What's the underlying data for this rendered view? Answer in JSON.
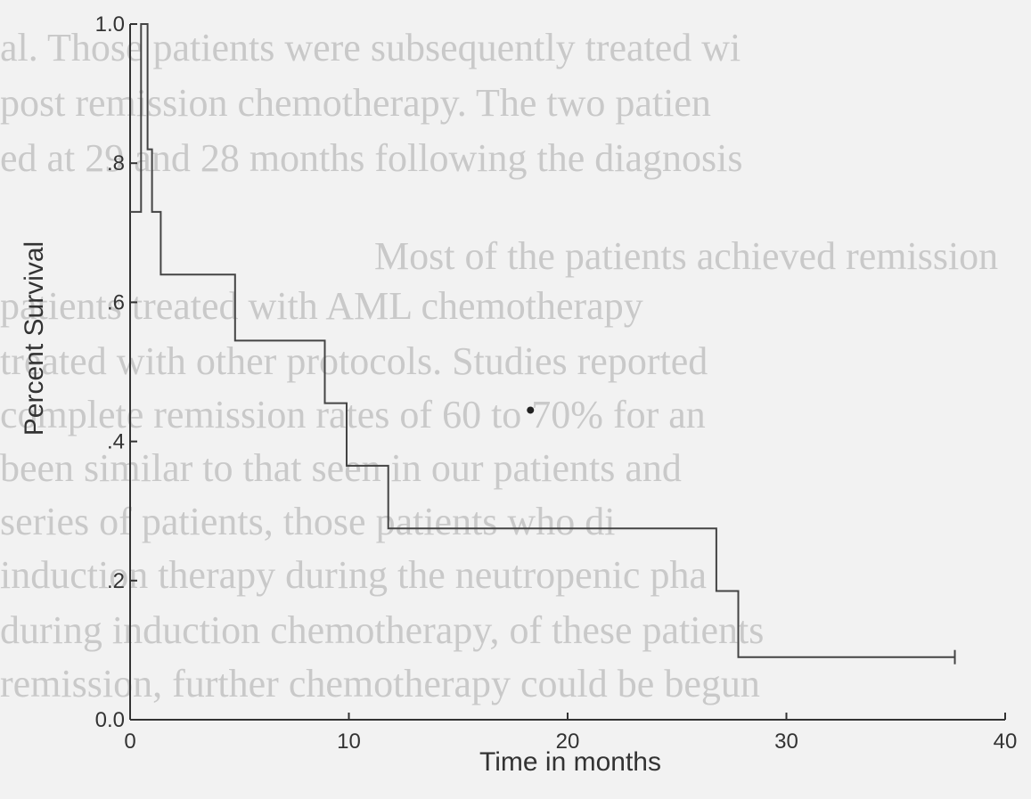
{
  "background_text": [
    "al. Those patients were subsequently treated wi",
    "post remission chemotherapy. The two patien",
    "ed at 29 and 28 months following the diagnosis",
    "Most of the patients achieved remission",
    "patients treated with AML chemotherapy",
    "treated with other protocols. Studies reported",
    "complete remission rates of 60 to 70% for an",
    "been similar to that seen in our patients and",
    "series of patients, those patients who di",
    "induction therapy during the neutropenic pha",
    "during induction chemotherapy, of these patients",
    "remission, further chemotherapy could be begun"
  ],
  "chart_data": {
    "type": "line",
    "title": "",
    "xlabel": "Time in months",
    "ylabel": "Percent Survival",
    "xlim": [
      0,
      40
    ],
    "ylim": [
      0,
      1.0
    ],
    "xticks": [
      0,
      10,
      20,
      30,
      40
    ],
    "xtick_labels": [
      "0",
      "10",
      "20",
      "30",
      "40"
    ],
    "yticks": [
      0,
      0.2,
      0.4,
      0.6,
      0.8,
      1.0
    ],
    "ytick_labels": [
      "0.0",
      ".2",
      ".4",
      ".6",
      ".8",
      "1.0"
    ],
    "grid": false,
    "series": [
      {
        "step": true,
        "x": [
          0,
          0.5,
          0.5,
          0.8,
          0.8,
          1.0,
          1.0,
          1.4,
          1.4,
          4.8,
          4.8,
          8.9,
          8.9,
          9.9,
          9.9,
          11.8,
          11.8,
          26.8,
          26.8,
          27.8,
          27.8,
          37.7
        ],
        "y": [
          0.73,
          0.73,
          1.0,
          1.0,
          0.82,
          0.82,
          0.73,
          0.73,
          0.64,
          0.64,
          0.545,
          0.545,
          0.455,
          0.455,
          0.365,
          0.365,
          0.275,
          0.275,
          0.185,
          0.185,
          0.09,
          0.09
        ],
        "censored": [
          {
            "x": 37.7,
            "y": 0.09
          }
        ]
      }
    ],
    "stray_mark": {
      "x": 18.3,
      "y": 0.445
    }
  }
}
